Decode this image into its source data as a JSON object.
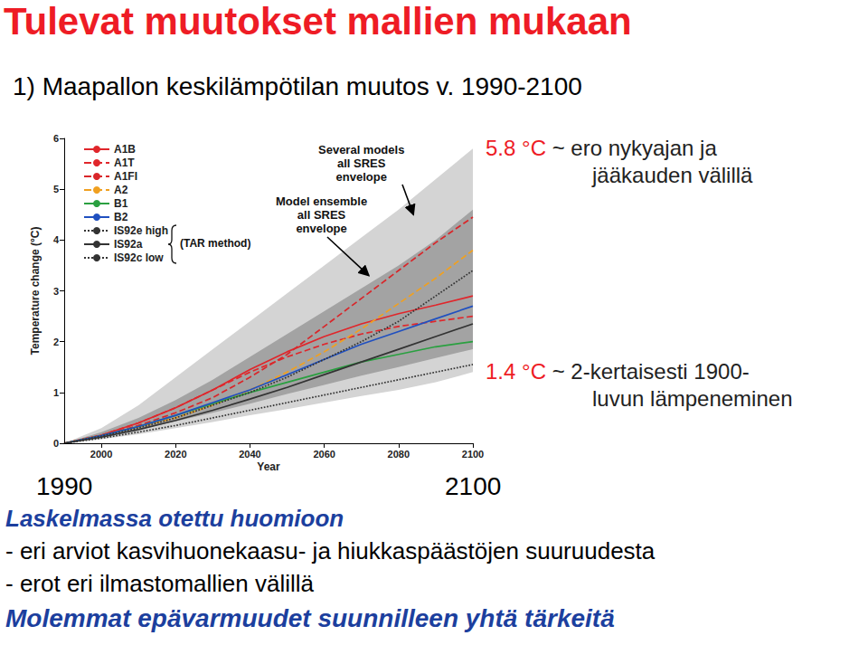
{
  "title": "Tulevat muutokset mallien mukaan",
  "subtitle": "1) Maapallon keskilämpötilan muutos v. 1990-2100",
  "chart_data": {
    "type": "line",
    "x_label": "Year",
    "y_label": "Temperature change (°C)",
    "x": [
      1990,
      2000,
      2010,
      2020,
      2030,
      2040,
      2050,
      2060,
      2070,
      2080,
      2090,
      2100
    ],
    "xlim": [
      1990,
      2100
    ],
    "xticks": [
      2000,
      2020,
      2040,
      2060,
      2080,
      2100
    ],
    "ylim": [
      0,
      6
    ],
    "yticks": [
      0,
      1,
      2,
      3,
      4,
      5,
      6
    ],
    "grid": false,
    "legend": "upper left",
    "series": [
      {
        "name": "A1B",
        "color": "#e0262b",
        "line_style": "solid",
        "values": [
          0,
          0.16,
          0.4,
          0.7,
          1.05,
          1.45,
          1.8,
          2.1,
          2.35,
          2.55,
          2.72,
          2.9
        ]
      },
      {
        "name": "A1T",
        "color": "#e0262b",
        "line_style": "dashed",
        "values": [
          0,
          0.16,
          0.4,
          0.7,
          1.05,
          1.4,
          1.7,
          1.95,
          2.15,
          2.3,
          2.4,
          2.5
        ]
      },
      {
        "name": "A1FI",
        "color": "#d9262a",
        "line_style": "dashed",
        "values": [
          0,
          0.15,
          0.35,
          0.6,
          0.9,
          1.3,
          1.75,
          2.3,
          2.85,
          3.4,
          3.95,
          4.45
        ]
      },
      {
        "name": "A2",
        "color": "#f0a020",
        "line_style": "dashed",
        "values": [
          0,
          0.15,
          0.32,
          0.5,
          0.75,
          1.05,
          1.4,
          1.8,
          2.25,
          2.75,
          3.25,
          3.8
        ]
      },
      {
        "name": "B1",
        "color": "#2aa040",
        "line_style": "solid",
        "values": [
          0,
          0.15,
          0.33,
          0.55,
          0.78,
          1.0,
          1.2,
          1.4,
          1.6,
          1.75,
          1.9,
          2.0
        ]
      },
      {
        "name": "B2",
        "color": "#2050c0",
        "line_style": "solid",
        "values": [
          0,
          0.15,
          0.33,
          0.55,
          0.8,
          1.05,
          1.35,
          1.65,
          1.95,
          2.2,
          2.45,
          2.7
        ]
      },
      {
        "name": "IS92e high",
        "color": "#333333",
        "line_style": "dotted",
        "values": [
          0,
          0.14,
          0.3,
          0.5,
          0.75,
          1.0,
          1.3,
          1.65,
          2.0,
          2.4,
          2.9,
          3.4
        ]
      },
      {
        "name": "IS92a",
        "color": "#333333",
        "line_style": "solid",
        "values": [
          0,
          0.12,
          0.27,
          0.45,
          0.65,
          0.87,
          1.1,
          1.35,
          1.6,
          1.85,
          2.1,
          2.35
        ]
      },
      {
        "name": "IS92c low",
        "color": "#333333",
        "line_style": "dotted",
        "values": [
          0,
          0.1,
          0.22,
          0.35,
          0.5,
          0.65,
          0.8,
          0.95,
          1.1,
          1.25,
          1.4,
          1.55
        ]
      }
    ],
    "envelopes": [
      {
        "label": "Several models\nall SRES\nenvelope",
        "color": "#d4d4d4",
        "lower": [
          0,
          0.08,
          0.18,
          0.3,
          0.42,
          0.55,
          0.67,
          0.8,
          0.93,
          1.05,
          1.2,
          1.4
        ],
        "upper": [
          0,
          0.3,
          0.75,
          1.3,
          1.85,
          2.4,
          2.95,
          3.5,
          4.05,
          4.6,
          5.2,
          5.8
        ]
      },
      {
        "label": "Model ensemble\nall SRES\nenvelope",
        "color": "#a3a3a3",
        "lower": [
          0,
          0.12,
          0.27,
          0.43,
          0.6,
          0.78,
          0.97,
          1.15,
          1.33,
          1.5,
          1.68,
          1.85
        ],
        "upper": [
          0,
          0.22,
          0.5,
          0.85,
          1.25,
          1.7,
          2.15,
          2.6,
          3.05,
          3.5,
          4.0,
          4.6
        ]
      }
    ],
    "annotations": [
      {
        "text": "(TAR method)",
        "series": [
          "IS92e high",
          "IS92a",
          "IS92c low"
        ]
      },
      {
        "text": "1990",
        "x": 1990
      },
      {
        "text": "2100",
        "x": 2100
      },
      {
        "highlight": "5.8 °C",
        "text": "~ ero nykyajan ja\njääkauden välillä",
        "y": 5.8
      },
      {
        "highlight": "1.4 °C",
        "text": "~ 2-kertaisesti 1900-\nluvun lämpeneminen",
        "y": 1.4
      }
    ]
  },
  "footer": {
    "heading": "Laskelmassa otettu huomioon",
    "items": [
      "- eri arviot kasvihuonekaasu- ja hiukkaspäästöjen suuruudesta",
      "- erot eri ilmastomallien välillä"
    ],
    "conclusion": "Molemmat epävarmuudet suunnilleen yhtä tärkeitä"
  }
}
